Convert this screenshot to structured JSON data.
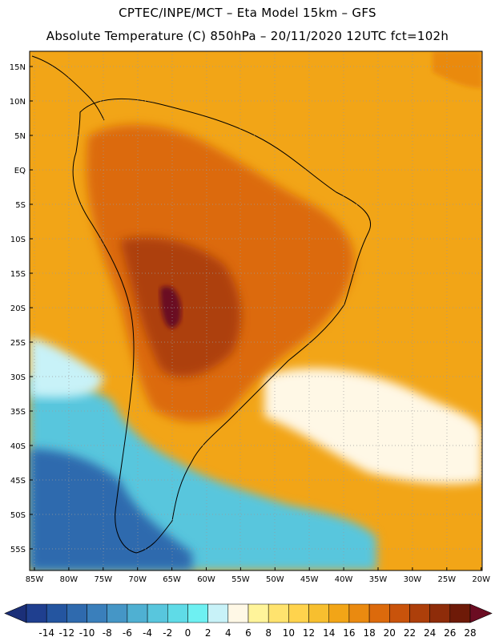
{
  "header": {
    "line1": "CPTEC/INPE/MCT –  Eta Model 15km – GFS",
    "line2": "Absolute Temperature (C) 850hPa – 20/11/2020 12UTC fct=102h"
  },
  "map": {
    "lat_labels": [
      "15N",
      "10N",
      "5N",
      "EQ",
      "5S",
      "10S",
      "15S",
      "20S",
      "25S",
      "30S",
      "35S",
      "40S",
      "45S",
      "50S",
      "55S"
    ],
    "lon_labels": [
      "85W",
      "80W",
      "75W",
      "70W",
      "65W",
      "60W",
      "55W",
      "50W",
      "45W",
      "40W",
      "35W",
      "30W",
      "25W",
      "20W"
    ]
  },
  "colorbar": {
    "labels": [
      "-14",
      "-12",
      "-10",
      "-8",
      "-6",
      "-4",
      "-2",
      "0",
      "2",
      "4",
      "6",
      "8",
      "10",
      "12",
      "14",
      "16",
      "18",
      "20",
      "22",
      "24",
      "26",
      "28"
    ],
    "colors": [
      "#1f3f8f",
      "#2455a0",
      "#2f6aae",
      "#3a7fbb",
      "#4596c6",
      "#4fb0d2",
      "#58c6dd",
      "#5fdbe7",
      "#6ef0f2",
      "#c8f2f8",
      "#fff8e6",
      "#fff49a",
      "#ffe36e",
      "#ffd34d",
      "#f7bf2f",
      "#f2a517",
      "#ea8a10",
      "#dc6a0c",
      "#c9530b",
      "#ad3f0a",
      "#8e2c09",
      "#6e1a08"
    ],
    "under_color": "#1b2f78",
    "over_color": "#6b0c22"
  }
}
